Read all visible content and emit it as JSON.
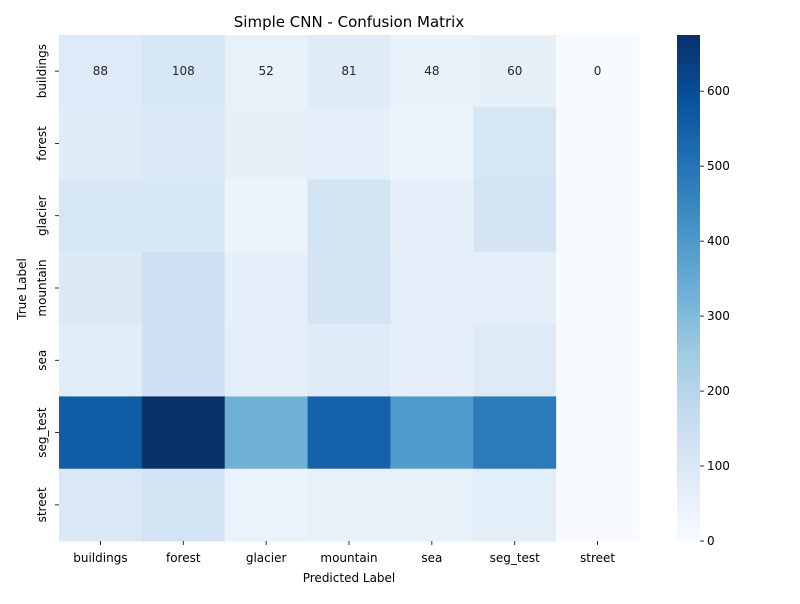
{
  "chart_data": {
    "type": "heatmap",
    "title": "Simple CNN - Confusion Matrix",
    "xlabel": "Predicted Label",
    "ylabel": "True Label",
    "x_categories": [
      "buildings",
      "forest",
      "glacier",
      "mountain",
      "sea",
      "seg_test",
      "street"
    ],
    "y_categories": [
      "buildings",
      "forest",
      "glacier",
      "mountain",
      "sea",
      "seg_test",
      "street"
    ],
    "values": [
      [
        88,
        108,
        52,
        81,
        48,
        60,
        0
      ],
      [
        82,
        95,
        60,
        65,
        38,
        112,
        0
      ],
      [
        110,
        105,
        42,
        122,
        58,
        120,
        0
      ],
      [
        90,
        140,
        58,
        120,
        65,
        62,
        0
      ],
      [
        75,
        140,
        65,
        80,
        62,
        85,
        0
      ],
      [
        560,
        675,
        330,
        545,
        395,
        480,
        0
      ],
      [
        100,
        125,
        45,
        55,
        55,
        70,
        0
      ]
    ],
    "annotated_row": 0,
    "colormap": "Blues",
    "vmin": 0,
    "vmax": 675,
    "colorbar": {
      "ticks": [
        0,
        100,
        200,
        300,
        400,
        500,
        600
      ]
    }
  }
}
